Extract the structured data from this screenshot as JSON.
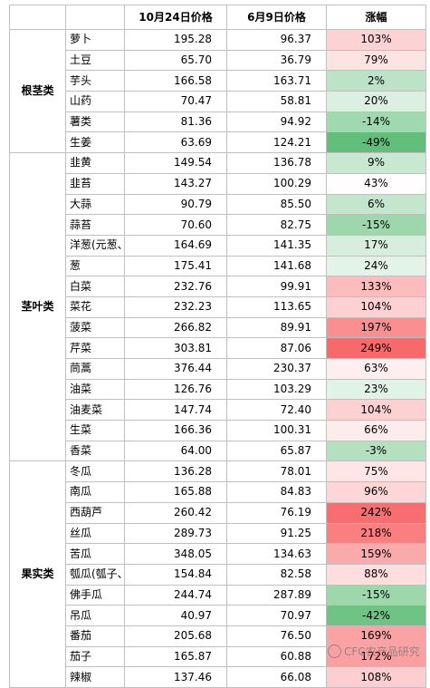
{
  "table": {
    "header": [
      "10月24日价格",
      "6月9日价格",
      "涨幅"
    ],
    "groups": [
      {
        "label": "根茎类",
        "rows": [
          [
            "萝卜",
            "195.28",
            "96.37",
            "103%"
          ],
          [
            "土豆",
            "65.70",
            "36.79",
            "79%"
          ],
          [
            "芋头",
            "166.58",
            "163.71",
            "2%"
          ],
          [
            "山药",
            "70.47",
            "58.81",
            "20%"
          ],
          [
            "薯类",
            "81.36",
            "94.92",
            "-14%"
          ],
          [
            "生姜",
            "63.69",
            "124.21",
            "-49%"
          ]
        ]
      },
      {
        "label": "茎叶类",
        "rows": [
          [
            "韭黄",
            "149.54",
            "136.78",
            "9%"
          ],
          [
            "韭苔",
            "143.27",
            "100.29",
            "43%"
          ],
          [
            "大蒜",
            "90.79",
            "85.50",
            "6%"
          ],
          [
            "蒜苔",
            "70.60",
            "82.75",
            "-15%"
          ],
          [
            "洋葱(元葱、",
            "164.69",
            "141.35",
            "17%"
          ],
          [
            "葱",
            "175.41",
            "141.68",
            "24%"
          ],
          [
            "白菜",
            "232.76",
            "99.91",
            "133%"
          ],
          [
            "菜花",
            "232.23",
            "113.65",
            "104%"
          ],
          [
            "菠菜",
            "266.82",
            "89.91",
            "197%"
          ],
          [
            "芹菜",
            "303.81",
            "87.06",
            "249%"
          ],
          [
            "茼蒿",
            "376.44",
            "230.37",
            "63%"
          ],
          [
            "油菜",
            "126.76",
            "103.29",
            "23%"
          ],
          [
            "油麦菜",
            "147.74",
            "72.40",
            "104%"
          ],
          [
            "生菜",
            "166.36",
            "100.31",
            "66%"
          ],
          [
            "香菜",
            "64.00",
            "65.87",
            "-3%"
          ]
        ]
      },
      {
        "label": "果实类",
        "rows": [
          [
            "冬瓜",
            "136.28",
            "78.01",
            "75%"
          ],
          [
            "南瓜",
            "165.88",
            "84.83",
            "96%"
          ],
          [
            "西葫芦",
            "260.42",
            "76.19",
            "242%"
          ],
          [
            "丝瓜",
            "289.73",
            "91.25",
            "218%"
          ],
          [
            "苦瓜",
            "348.05",
            "134.63",
            "159%"
          ],
          [
            "瓠瓜(瓠子、",
            "154.84",
            "82.58",
            "88%"
          ],
          [
            "佛手瓜",
            "244.74",
            "287.89",
            "-15%"
          ],
          [
            "吊瓜",
            "40.97",
            "70.97",
            "-42%"
          ],
          [
            "番茄",
            "205.68",
            "76.50",
            "169%"
          ],
          [
            "茄子",
            "165.87",
            "60.88",
            "172%"
          ],
          [
            "辣椒",
            "137.46",
            "66.08",
            "108%"
          ]
        ]
      }
    ]
  },
  "watermark": "CFC农产品研究"
}
